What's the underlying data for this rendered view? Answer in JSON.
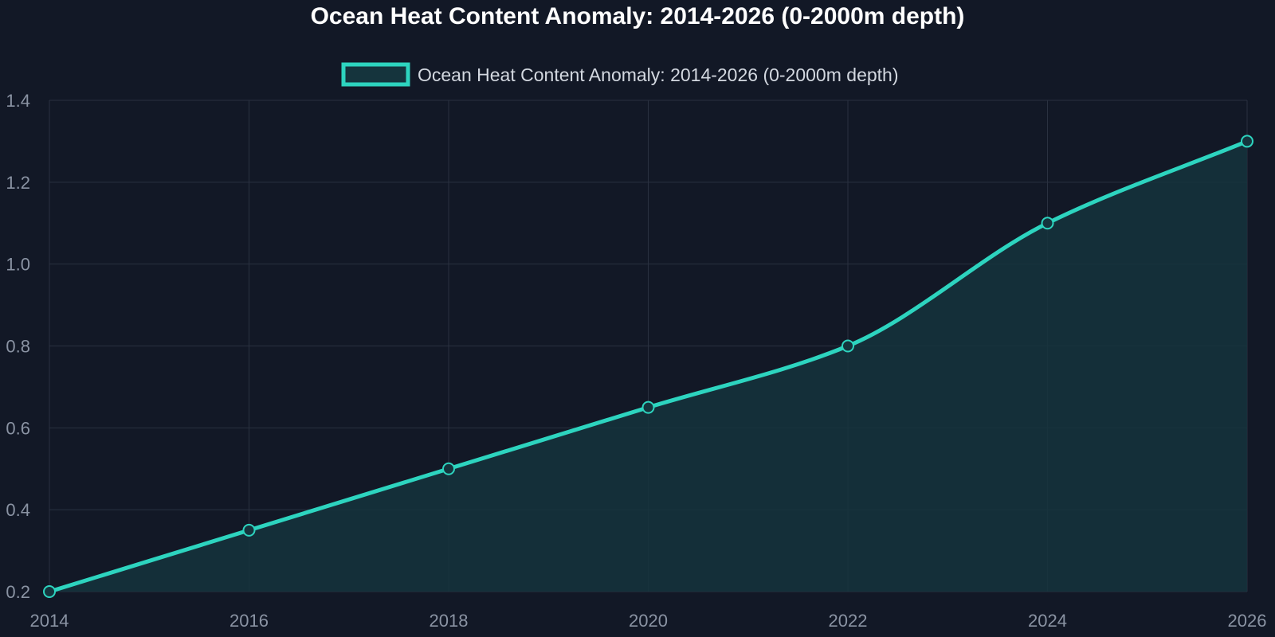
{
  "chart_data": {
    "type": "area",
    "title": "Ocean Heat Content Anomaly: 2014-2026 (0-2000m depth)",
    "x": [
      2014,
      2016,
      2018,
      2020,
      2022,
      2024,
      2026
    ],
    "series": [
      {
        "name": "Ocean Heat Content Anomaly: 2014-2026 (0-2000m depth)",
        "values": [
          0.2,
          0.35,
          0.5,
          0.65,
          0.8,
          1.1,
          1.3
        ]
      }
    ],
    "xticks": [
      "2014",
      "2016",
      "2018",
      "2020",
      "2022",
      "2024",
      "2026"
    ],
    "yticks": [
      "0.2",
      "0.4",
      "0.6",
      "0.8",
      "1.0",
      "1.2",
      "1.4"
    ],
    "xlim": [
      2014,
      2026
    ],
    "ylim": [
      0.2,
      1.4
    ],
    "xlabel": "",
    "ylabel": "",
    "grid": true,
    "legend_position": "top-center",
    "colors": {
      "background": "#121826",
      "line": "#2dd4bf",
      "fill": "#15343d",
      "grid": "#2a3140",
      "tick": "#8a93a3",
      "title": "#ffffff",
      "legend_text": "#d3d8e0"
    }
  }
}
